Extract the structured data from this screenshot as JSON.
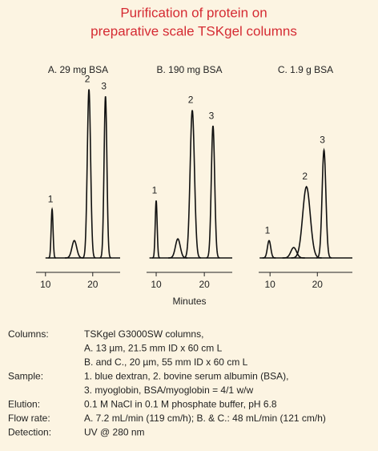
{
  "title_lines": [
    "Purification of protein on",
    "preparative scale TSKgel columns"
  ],
  "chart_data": [
    {
      "type": "chromatogram",
      "title": "A. 29 mg BSA",
      "xlim": [
        8,
        25.8
      ],
      "xticks": [
        10,
        20
      ],
      "ylim": [
        0,
        100
      ],
      "peaks": {
        "labels": [
          "1",
          null,
          "2",
          "3"
        ],
        "x": [
          11.4,
          16.1,
          19.2,
          22.7
        ],
        "values": [
          28,
          10,
          97,
          93
        ],
        "widths": [
          0.2,
          0.5,
          0.35,
          0.3
        ]
      }
    },
    {
      "type": "chromatogram",
      "title": "B. 190 mg BSA",
      "xlabel": "Minutes",
      "xlim": [
        8,
        25.8
      ],
      "xticks": [
        10,
        20
      ],
      "ylim": [
        0,
        100
      ],
      "peaks": {
        "labels": [
          "1",
          null,
          "2",
          "3"
        ],
        "x": [
          10,
          14.5,
          17.5,
          21.8
        ],
        "values": [
          33,
          11,
          85,
          76
        ],
        "widths": [
          0.2,
          0.5,
          0.45,
          0.35
        ]
      }
    },
    {
      "type": "chromatogram",
      "title": "C. 1.9 g BSA",
      "xlim": [
        7.6,
        27.4
      ],
      "xticks": [
        10,
        20
      ],
      "ylim": [
        0,
        100
      ],
      "peaks": {
        "labels": [
          "1",
          null,
          "2",
          "3"
        ],
        "x": [
          9.8,
          15,
          17.7,
          21.4
        ],
        "values": [
          10,
          6,
          41,
          62
        ],
        "widths": [
          0.35,
          0.6,
          0.8,
          0.4
        ]
      }
    }
  ],
  "conditions": [
    {
      "label": "Columns:",
      "lines": [
        "TSKgel G3000SW columns,",
        "A. 13 µm, 21.5 mm ID x 60 cm L",
        "B. and C., 20 µm, 55 mm ID x 60 cm L"
      ]
    },
    {
      "label": "Sample:",
      "lines": [
        "1. blue dextran, 2. bovine serum albumin (BSA),",
        "3. myoglobin, BSA/myoglobin = 4/1 w/w"
      ]
    },
    {
      "label": "Elution:",
      "lines": [
        "0.1 M NaCl in 0.1 M phosphate buffer, pH 6.8"
      ]
    },
    {
      "label": "Flow rate:",
      "lines": [
        "A. 7.2 mL/min (119 cm/h); B. & C.: 48 mL/min (121 cm/h)"
      ]
    },
    {
      "label": "Detection:",
      "lines": [
        "UV @ 280 nm"
      ]
    }
  ]
}
